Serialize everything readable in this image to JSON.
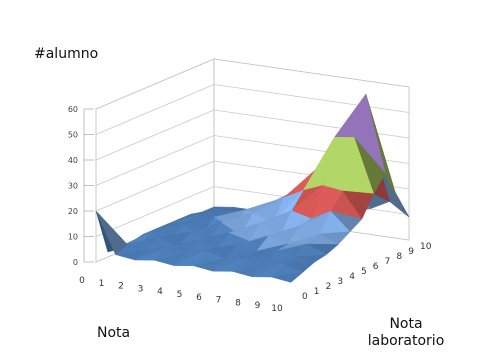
{
  "chart_data": {
    "type": "surface3d",
    "title": "#alumno",
    "xlabel": "Nota",
    "ylabel_lines": [
      "Nota",
      "laboratorio"
    ],
    "x_ticks": [
      "0",
      "1",
      "2",
      "3",
      "4",
      "5",
      "6",
      "7",
      "8",
      "9",
      "10"
    ],
    "y_ticks": [
      "0",
      "1",
      "2",
      "3",
      "4",
      "5",
      "6",
      "7",
      "8",
      "9",
      "10"
    ],
    "z_ticks": [
      "0",
      "10",
      "20",
      "30",
      "40",
      "50",
      "60"
    ],
    "zlim": [
      0,
      60
    ],
    "bands": [
      {
        "range": [
          0,
          10
        ],
        "color": "#4f81bd"
      },
      {
        "range": [
          10,
          20
        ],
        "color": "#7aa4da"
      },
      {
        "range": [
          20,
          30
        ],
        "color": "#c0504d"
      },
      {
        "range": [
          30,
          40
        ],
        "color": "#9bbb59"
      },
      {
        "range": [
          40,
          50
        ],
        "color": "#8064a2"
      },
      {
        "range": [
          50,
          60
        ],
        "color": "#4bacc6"
      },
      {
        "range": [
          60,
          70
        ],
        "color": "#f79646"
      }
    ],
    "z": [
      [
        20,
        2,
        2,
        2,
        3,
        3,
        3,
        3,
        3,
        2,
        2
      ],
      [
        4,
        6,
        4,
        7,
        5,
        6,
        5,
        6,
        5,
        4,
        3
      ],
      [
        3,
        5,
        8,
        5,
        9,
        6,
        8,
        6,
        7,
        5,
        3
      ],
      [
        4,
        7,
        5,
        9,
        6,
        11,
        7,
        9,
        6,
        5,
        4
      ],
      [
        3,
        6,
        9,
        7,
        12,
        8,
        13,
        10,
        8,
        6,
        4
      ],
      [
        4,
        8,
        7,
        11,
        8,
        15,
        12,
        16,
        11,
        8,
        5
      ],
      [
        3,
        6,
        9,
        9,
        14,
        12,
        20,
        21,
        16,
        11,
        6
      ],
      [
        4,
        7,
        8,
        12,
        10,
        18,
        24,
        30,
        24,
        14,
        8
      ],
      [
        3,
        6,
        9,
        10,
        15,
        16,
        27,
        44,
        40,
        21,
        10
      ],
      [
        4,
        7,
        8,
        11,
        13,
        20,
        26,
        45,
        60,
        32,
        14
      ],
      [
        3,
        5,
        7,
        8,
        10,
        13,
        16,
        24,
        30,
        18,
        9
      ]
    ]
  }
}
